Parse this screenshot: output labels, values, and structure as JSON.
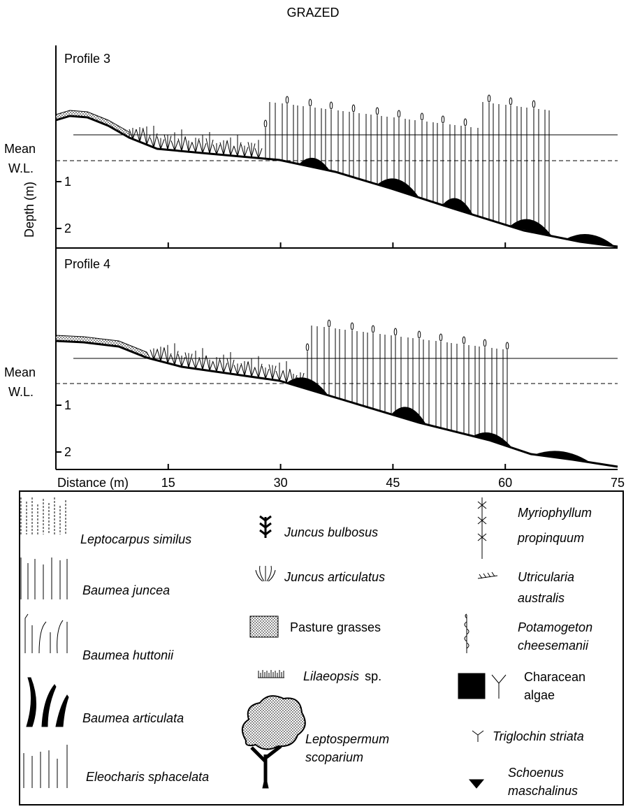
{
  "title": "GRAZED",
  "y_axis_label": "Depth (m)",
  "profiles": [
    {
      "label": "Profile 3",
      "water_level_label": [
        "Mean",
        "W.L."
      ],
      "depth_ticks": [
        1,
        2
      ]
    },
    {
      "label": "Profile 4",
      "water_level_label": [
        "Mean",
        "W.L."
      ],
      "depth_ticks": [
        1,
        2
      ]
    }
  ],
  "x_axis": {
    "label": "Distance (m)",
    "ticks": [
      15,
      30,
      45,
      60,
      75
    ]
  },
  "legend": [
    {
      "lines": [
        "Leptocarpus  similus"
      ]
    },
    {
      "lines": [
        "Baumea  juncea"
      ]
    },
    {
      "lines": [
        "Baumea  huttonii"
      ]
    },
    {
      "lines": [
        "Baumea  articulata"
      ]
    },
    {
      "lines": [
        "Eleocharis  sphacelata"
      ]
    },
    {
      "lines": [
        "Juncus  bulbosus"
      ]
    },
    {
      "lines": [
        "Juncus  articulatus"
      ]
    },
    {
      "lines": [
        "Pasture grasses"
      ]
    },
    {
      "lines": [
        "Lilaeopsis"
      ],
      "suffix": "sp."
    },
    {
      "lines": [
        "Leptospermum",
        "scoparium"
      ]
    },
    {
      "lines": [
        "Myriophyllum",
        "propinquum"
      ]
    },
    {
      "lines": [
        "Utricularia",
        "australis"
      ]
    },
    {
      "lines": [
        "Potamogeton",
        "cheesemanii"
      ]
    },
    {
      "lines": [
        "Characean",
        "algae"
      ]
    },
    {
      "lines": [
        "Triglochin  striata"
      ]
    },
    {
      "lines": [
        "Schoenus",
        "maschalinus"
      ]
    }
  ]
}
